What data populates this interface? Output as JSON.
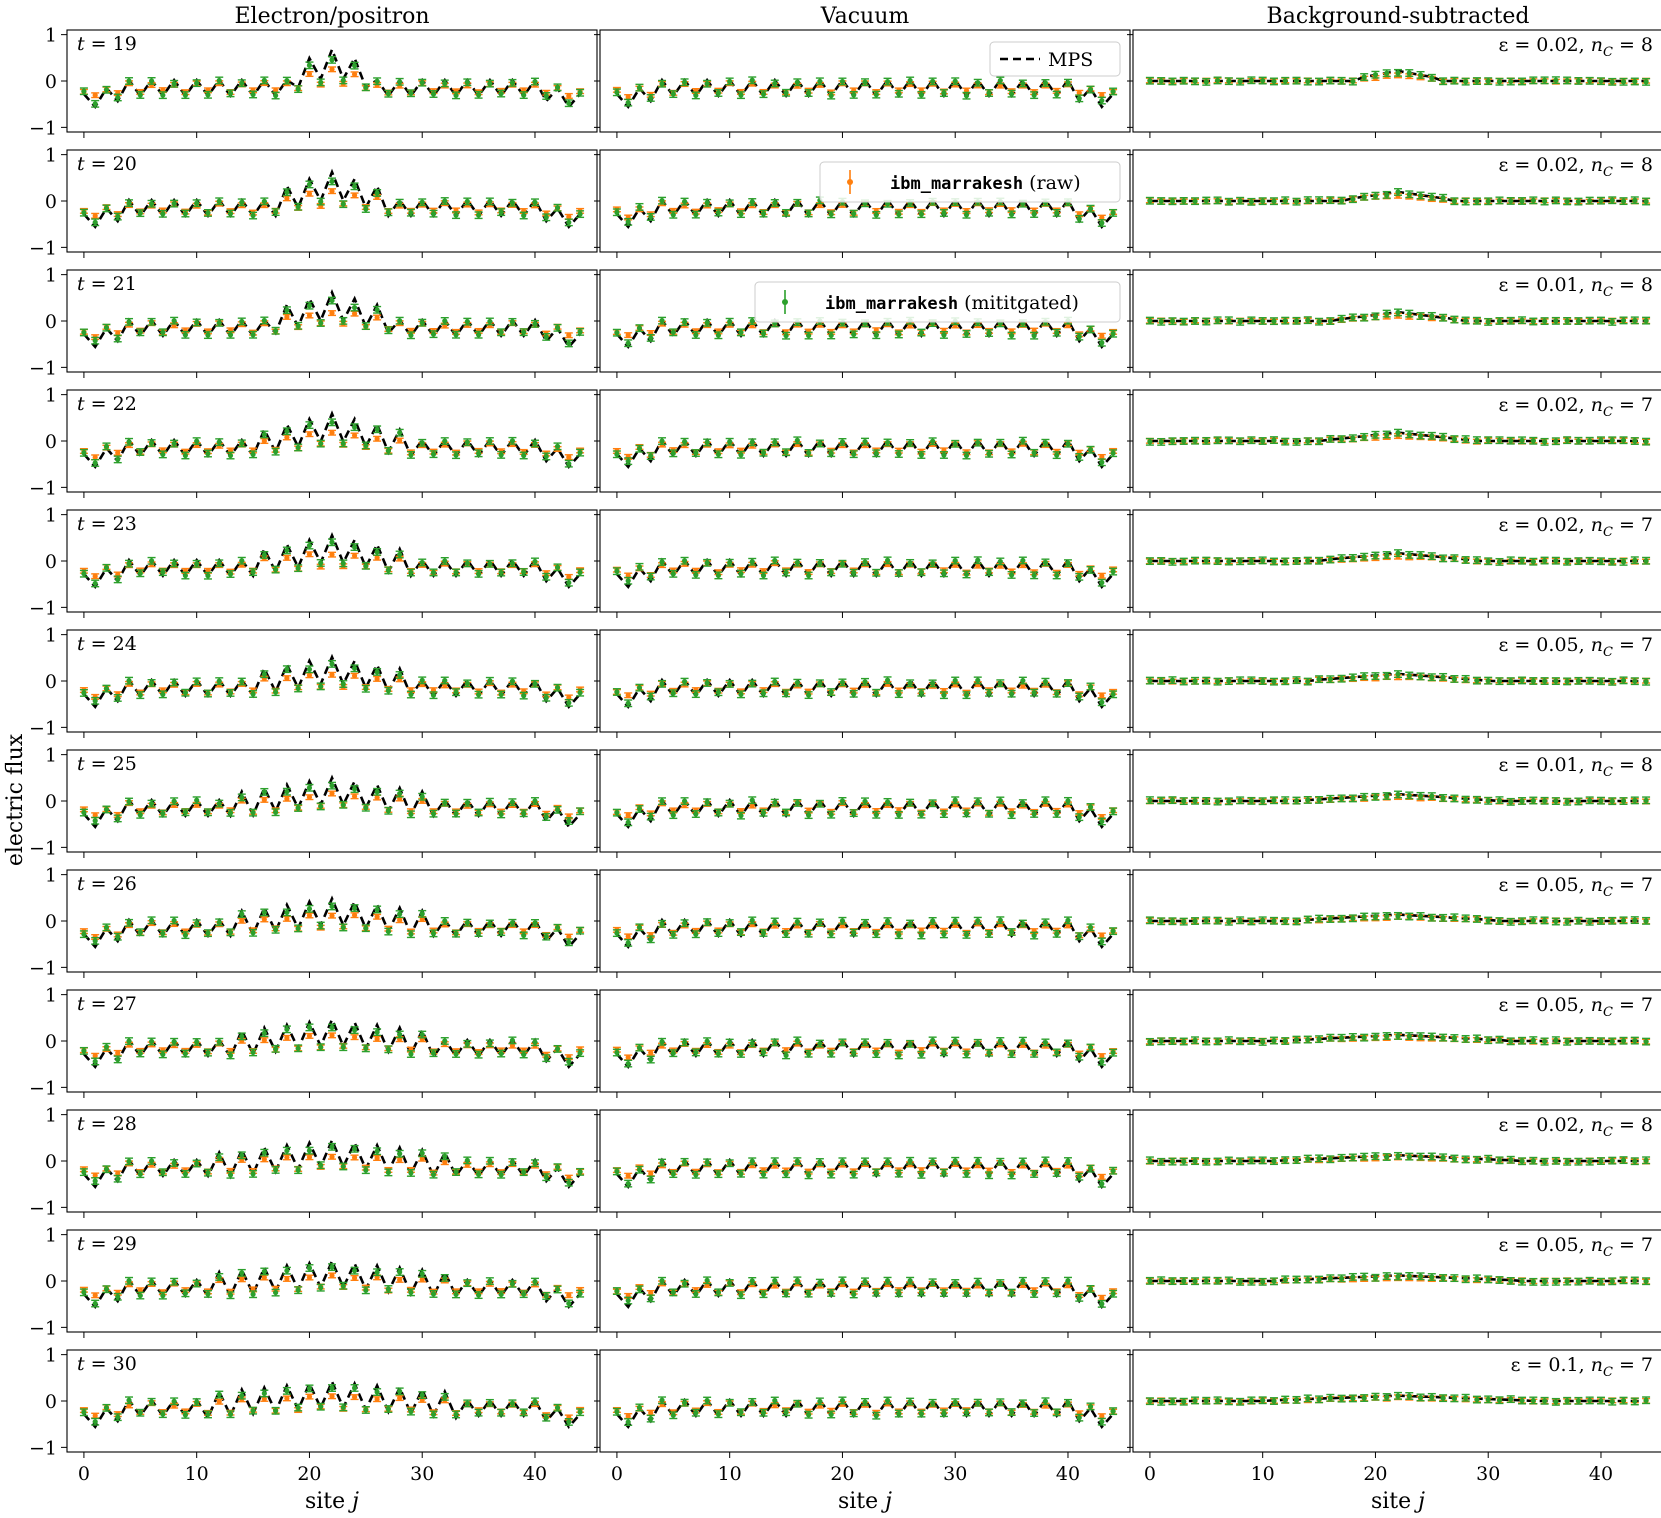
{
  "figure": {
    "ylabel": "electric flux",
    "xlabel": "site j",
    "xlabel_prefix": "site ",
    "xlabel_var": "j",
    "column_titles": [
      "Electron/positron",
      "Vacuum",
      "Background-subtracted"
    ],
    "legend": {
      "mps": "MPS",
      "raw_mono": "ibm_marrakesh",
      "raw_suffix": " (raw)",
      "mit_mono": "ibm_marrakesh",
      "mit_suffix": " (mititgated)"
    },
    "colors": {
      "mps": "#000000",
      "raw": "#ff7f0e",
      "mitigated": "#2ca02c"
    }
  },
  "chart_data": {
    "type": "line",
    "layout": "12 rows x 3 columns of small-multiple panels",
    "x_range": [
      -1.5,
      45.5
    ],
    "y_range": [
      -1.1,
      1.1
    ],
    "x_ticks": [
      0,
      10,
      20,
      30,
      40
    ],
    "y_ticks": [
      -1,
      0,
      1
    ],
    "x_tick_labels": [
      "0",
      "10",
      "20",
      "30",
      "40"
    ],
    "y_tick_labels": [
      "−1",
      "0",
      "1"
    ],
    "grid": false,
    "legend_position": "top-right of vacuum panels",
    "sites": 45,
    "rows": [
      {
        "t": "19",
        "t_label": "t = 19",
        "eps": "ε = 0.02, n",
        "nc": "8",
        "center_amp": 0.62
      },
      {
        "t": "20",
        "t_label": "t = 20",
        "eps": "ε = 0.02, n",
        "nc": "8",
        "center_amp": 0.56
      },
      {
        "t": "21",
        "t_label": "t = 21",
        "eps": "ε = 0.01, n",
        "nc": "8",
        "center_amp": 0.55
      },
      {
        "t": "22",
        "t_label": "t = 22",
        "eps": "ε = 0.02, n",
        "nc": "7",
        "center_amp": 0.52
      },
      {
        "t": "23",
        "t_label": "t = 23",
        "eps": "ε = 0.02, n",
        "nc": "7",
        "center_amp": 0.48
      },
      {
        "t": "24",
        "t_label": "t = 24",
        "eps": "ε = 0.05, n",
        "nc": "7",
        "center_amp": 0.44
      },
      {
        "t": "25",
        "t_label": "t = 25",
        "eps": "ε = 0.01, n",
        "nc": "8",
        "center_amp": 0.42
      },
      {
        "t": "26",
        "t_label": "t = 26",
        "eps": "ε = 0.05, n",
        "nc": "7",
        "center_amp": 0.4
      },
      {
        "t": "27",
        "t_label": "t = 27",
        "eps": "ε = 0.05, n",
        "nc": "7",
        "center_amp": 0.38
      },
      {
        "t": "28",
        "t_label": "t = 28",
        "eps": "ε = 0.02, n",
        "nc": "8",
        "center_amp": 0.36
      },
      {
        "t": "29",
        "t_label": "t = 29",
        "eps": "ε = 0.05, n",
        "nc": "7",
        "center_amp": 0.34
      },
      {
        "t": "30",
        "t_label": "t = 30",
        "eps": "ε = 0.1, n",
        "nc": "7",
        "center_amp": 0.33
      }
    ],
    "series": [
      {
        "name": "MPS",
        "style": "dashed line",
        "color": "#000000"
      },
      {
        "name": "ibm_marrakesh (raw)",
        "style": "points with error bars",
        "color": "#ff7f0e"
      },
      {
        "name": "ibm_marrakesh (mititgated)",
        "style": "points with error bars",
        "color": "#2ca02c"
      }
    ]
  }
}
